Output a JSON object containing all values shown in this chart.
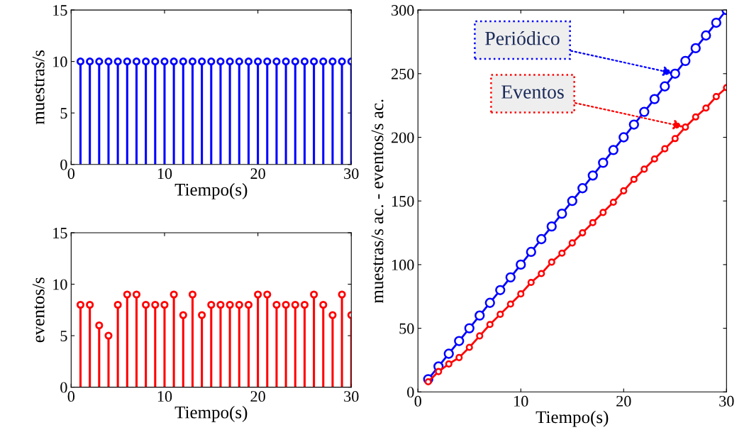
{
  "chart_data": [
    {
      "type": "lollipop",
      "xlabel": "Tiempo(s)",
      "ylabel": "muestras/s",
      "x": [
        1,
        2,
        3,
        4,
        5,
        6,
        7,
        8,
        9,
        10,
        11,
        12,
        13,
        14,
        15,
        16,
        17,
        18,
        19,
        20,
        21,
        22,
        23,
        24,
        25,
        26,
        27,
        28,
        29,
        30
      ],
      "series": [
        {
          "color": "#0000ff",
          "values": [
            10,
            10,
            10,
            10,
            10,
            10,
            10,
            10,
            10,
            10,
            10,
            10,
            10,
            10,
            10,
            10,
            10,
            10,
            10,
            10,
            10,
            10,
            10,
            10,
            10,
            10,
            10,
            10,
            10,
            10
          ]
        }
      ],
      "xlim": [
        0,
        30
      ],
      "xticks": [
        0,
        10,
        20,
        30
      ],
      "ylim": [
        0,
        15
      ],
      "yticks": [
        0,
        5,
        10,
        15
      ],
      "marker": "circle"
    },
    {
      "type": "lollipop",
      "xlabel": "Tiempo(s)",
      "ylabel": "eventos/s",
      "x": [
        1,
        2,
        3,
        4,
        5,
        6,
        7,
        8,
        9,
        10,
        11,
        12,
        13,
        14,
        15,
        16,
        17,
        18,
        19,
        20,
        21,
        22,
        23,
        24,
        25,
        26,
        27,
        28,
        29,
        30
      ],
      "series": [
        {
          "color": "#ff0000",
          "values": [
            8,
            8,
            6,
            5,
            8,
            9,
            9,
            8,
            8,
            8,
            9,
            7,
            9,
            7,
            8,
            8,
            8,
            8,
            8,
            9,
            9,
            8,
            8,
            8,
            8,
            9,
            8,
            7,
            9,
            7
          ]
        }
      ],
      "xlim": [
        0,
        30
      ],
      "xticks": [
        0,
        10,
        20,
        30
      ],
      "ylim": [
        0,
        15
      ],
      "yticks": [
        0,
        5,
        10,
        15
      ],
      "marker": "circle"
    },
    {
      "type": "line",
      "xlabel": "Tiempo(s)",
      "ylabel": "muestras/s ac. - eventos/s ac.",
      "x": [
        1,
        2,
        3,
        4,
        5,
        6,
        7,
        8,
        9,
        10,
        11,
        12,
        13,
        14,
        15,
        16,
        17,
        18,
        19,
        20,
        21,
        22,
        23,
        24,
        25,
        26,
        27,
        28,
        29,
        30
      ],
      "series": [
        {
          "color": "#0000ff",
          "values": [
            10,
            20,
            30,
            40,
            50,
            60,
            70,
            80,
            90,
            100,
            110,
            120,
            130,
            140,
            150,
            160,
            170,
            180,
            190,
            200,
            210,
            220,
            230,
            240,
            250,
            260,
            270,
            280,
            290,
            300
          ]
        },
        {
          "color": "#ff0000",
          "values": [
            8,
            16,
            22,
            27,
            35,
            44,
            53,
            61,
            69,
            77,
            86,
            93,
            102,
            109,
            117,
            125,
            133,
            141,
            149,
            158,
            167,
            175,
            183,
            191,
            199,
            208,
            216,
            223,
            232,
            239
          ]
        }
      ],
      "annotations": [
        {
          "text": "Periódico",
          "x": 25,
          "y": 250
        },
        {
          "text": "Eventos",
          "x": 26,
          "y": 208
        }
      ],
      "xlim": [
        0,
        30
      ],
      "xticks": [
        0,
        10,
        20,
        30
      ],
      "ylim": [
        0,
        300
      ],
      "yticks": [
        0,
        50,
        100,
        150,
        200,
        250,
        300
      ],
      "marker": "circle",
      "line_style": "solid"
    }
  ]
}
